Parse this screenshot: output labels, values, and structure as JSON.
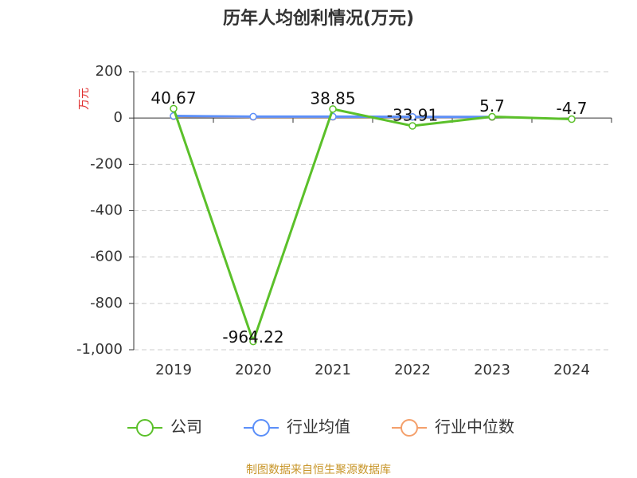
{
  "chart_data": {
    "type": "line",
    "title": "历年人均创利情况(万元)",
    "y_label": "万元",
    "source": "制图数据来自恒生聚源数据库",
    "categories": [
      "2019",
      "2020",
      "2021",
      "2022",
      "2023",
      "2024"
    ],
    "series": [
      {
        "name": "公司",
        "color": "#5bc02a",
        "values": [
          40.67,
          -964.22,
          38.85,
          -33.91,
          5.7,
          -4.7
        ]
      },
      {
        "name": "行业均值",
        "color": "#5b8ff9",
        "values": [
          9,
          6,
          6,
          5,
          5,
          null
        ]
      },
      {
        "name": "行业中位数",
        "color": "#f4a06b",
        "values": [
          8,
          5,
          5,
          5,
          4,
          null
        ]
      }
    ],
    "ylim": [
      -1000,
      200
    ],
    "yticks": [
      {
        "value": -1000,
        "label": "-1,000"
      },
      -800,
      -600,
      -400,
      -200,
      0,
      200
    ],
    "grid": true
  }
}
